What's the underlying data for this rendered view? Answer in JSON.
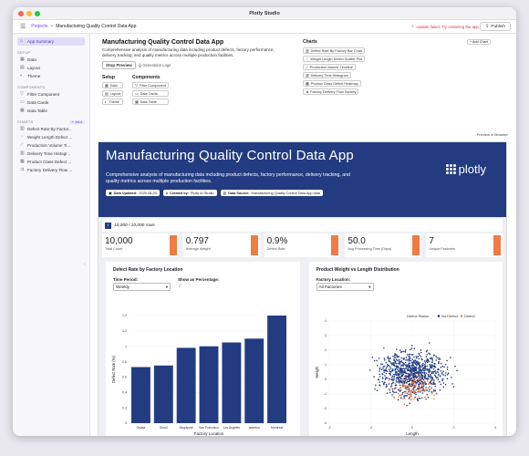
{
  "window": {
    "title": "Plotly Studio"
  },
  "topbar": {
    "crumb_root": "Projects",
    "crumb_separator": ">",
    "crumb_current": "Manufacturing Quality Control Data App",
    "update_warning": "Update failed. Try restarting the app.",
    "publish_label": "Publish"
  },
  "sidebar": {
    "app_summary": "App Summary",
    "setup_heading": "SETUP",
    "setup_items": [
      "Data",
      "Layout",
      "Theme"
    ],
    "components_heading": "COMPONENTS",
    "component_items": [
      "Filter Component",
      "Data Cards",
      "Data Table"
    ],
    "charts_heading": "CHARTS",
    "charts_add": "+ Add",
    "chart_items": [
      "Defect Rate By Factor...",
      "Weight Length Defect ...",
      "Production Volume Ti...",
      "Delivery Time Histogr...",
      "Product Class Defect ...",
      "Factory Delivery Flow ..."
    ]
  },
  "summary": {
    "title": "Manufacturing Quality Control Data App",
    "description": "Comprehensive analysis of manufacturing data including product defects, factory performance, delivery tracking, and quality metrics across multiple production facilities.",
    "stop_preview": "Stop Preview",
    "generation_logs": "Generation Logs",
    "setup_heading": "Setup",
    "setup_tags": [
      "Data",
      "Layout",
      "Theme"
    ],
    "components_heading": "Components",
    "component_tags": [
      "Filter Component",
      "Data Cards",
      "Data Table"
    ],
    "charts_heading": "Charts",
    "add_chart": "+ Add Chart",
    "chart_tags": [
      "Defect Rate By Factory Bar Chart",
      "Weight Length Defect Scatter Plot",
      "Production Volume Timeline",
      "Delivery Time Histogram",
      "Product Class Defect Heatmap",
      "Factory Delivery Flow Sankey"
    ],
    "preview_label": "Preview in Browser"
  },
  "preview": {
    "title": "Manufacturing Quality Control Data App",
    "description": "Comprehensive analysis of manufacturing data including product defects, factory performance, delivery tracking, and quality metrics across multiple production facilities.",
    "logo_text": "plotly",
    "meta": [
      {
        "label": "Data Updated:",
        "value": "2025-08-29"
      },
      {
        "label": "Created by:",
        "value": "Plotly AI Studio"
      },
      {
        "label": "Data Source:",
        "value": "Manufacturing Quality Control Data App data"
      }
    ],
    "rows_text": "10,000 / 10,000 rows",
    "kpis": [
      {
        "value": "10,000",
        "label": "Total Count"
      },
      {
        "value": "0.797",
        "label": "Average Weight"
      },
      {
        "value": "0.9%",
        "label": "Defect Rate"
      },
      {
        "value": "50.0",
        "label": "Avg Processing Time (Days)"
      },
      {
        "value": "7",
        "label": "Unique Factories"
      }
    ],
    "accent_color": "#ef7b45",
    "brand_color": "#233c81"
  },
  "bar_panel": {
    "title": "Defect Rate by Factory Location",
    "time_period_label": "Time Period:",
    "time_period_value": "Weekly",
    "show_pct_label": "Show as Percentage:",
    "check_mark": "✓"
  },
  "scatter_panel": {
    "title": "Product Weight vs Length Distribution",
    "factory_label": "Factory Location:",
    "factory_value": "All Factories",
    "legend_title": "Defect Status",
    "legend_no": "No Defect",
    "legend_yes": "Defect"
  },
  "chart_data": [
    {
      "type": "bar",
      "categories": [
        "Osaka",
        "Seoul",
        "Singapore",
        "San Francisco",
        "Los Angeles",
        "Istanbul",
        "Montreal"
      ],
      "values": [
        0.73,
        0.75,
        0.98,
        1.0,
        1.05,
        1.1,
        1.4
      ],
      "xlabel": "Factory Location",
      "ylabel": "Defect Rate (%)",
      "ylim": [
        0,
        1.4
      ],
      "yticks": [
        "0",
        "0.2",
        "0.4",
        "0.6",
        "0.8",
        "1",
        "1.2",
        "1.4"
      ],
      "color": "#233c81"
    },
    {
      "type": "scatter",
      "xlabel": "Length",
      "ylabel": "Weight",
      "xlim": [
        -4,
        4
      ],
      "ylim": [
        -3,
        4
      ],
      "xticks": [
        "-4",
        "-2",
        "0",
        "2",
        "4"
      ],
      "yticks": [
        "-3",
        "-2",
        "-1",
        "0",
        "1",
        "2",
        "3",
        "4"
      ],
      "series": [
        {
          "name": "No Defect",
          "color": "#233c81"
        },
        {
          "name": "Defect",
          "color": "#ef7b45"
        }
      ]
    }
  ]
}
